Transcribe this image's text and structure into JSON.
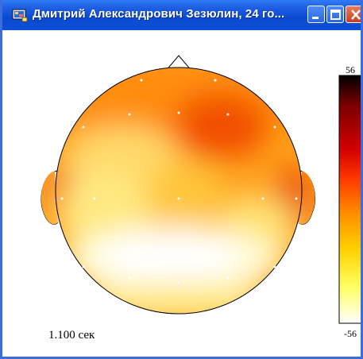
{
  "window": {
    "title": "Дмитрий Александрович Зезюлин, 24 го..."
  },
  "scale": {
    "max_label": "56",
    "min_label": "-56",
    "gradient_colors": [
      "#000000",
      "#7a0000",
      "#d40000",
      "#ff3a00",
      "#ff8a00",
      "#ffd000",
      "#ffff60",
      "#ffffff"
    ]
  },
  "map": {
    "time_label": "1.100 сек",
    "electrode_color": "#ffffff",
    "outline_color": "#000000"
  }
}
